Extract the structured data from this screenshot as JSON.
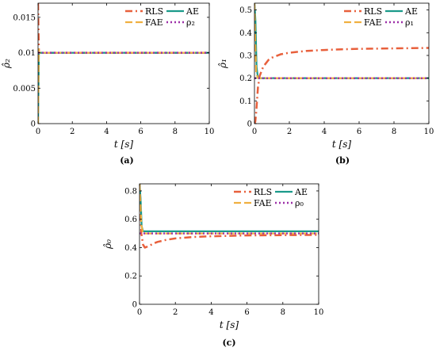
{
  "colors": {
    "RLS": "#e8603c",
    "AE": "#1a9a8a",
    "FAE": "#f0b040",
    "rho": "#9c2fa8"
  },
  "chart_data": [
    {
      "type": "line",
      "caption": "(a)",
      "xlabel": "t [s]",
      "ylabel": "ρ̂₂",
      "xlim": [
        0,
        10
      ],
      "ylim": [
        0,
        0.017
      ],
      "xticks": [
        0,
        2,
        4,
        6,
        8,
        10
      ],
      "yticks": [
        0,
        0.005,
        0.01,
        0.015
      ],
      "ytick_labels": [
        "0",
        "0.005",
        "0.01",
        "0.015"
      ],
      "legend": {
        "placement": "top-right",
        "entries": [
          "RLS",
          "AE",
          "FAE",
          "ρ₂"
        ]
      },
      "series": [
        {
          "name": "RLS",
          "style": "dashdot",
          "x": [
            0,
            0.02,
            0.05,
            0.1,
            0.5,
            1,
            2,
            4,
            6,
            8,
            10
          ],
          "y": [
            0.017,
            0.014,
            0.01,
            0.01,
            0.01,
            0.01,
            0.01,
            0.01,
            0.01,
            0.01,
            0.01
          ]
        },
        {
          "name": "AE",
          "style": "solid",
          "x": [
            0,
            0.05,
            0.1,
            1,
            10
          ],
          "y": [
            0,
            0.01,
            0.01,
            0.01,
            0.01
          ]
        },
        {
          "name": "FAE",
          "style": "dashed",
          "x": [
            0,
            0.04,
            0.08,
            1,
            10
          ],
          "y": [
            0,
            0.0105,
            0.01,
            0.01,
            0.01
          ]
        },
        {
          "name": "ρ₂",
          "style": "dotted",
          "x": [
            0,
            10
          ],
          "y": [
            0.01,
            0.01
          ]
        }
      ]
    },
    {
      "type": "line",
      "caption": "(b)",
      "xlabel": "t [s]",
      "ylabel": "ρ̂₁",
      "xlim": [
        0,
        10
      ],
      "ylim": [
        0,
        0.53
      ],
      "xticks": [
        0,
        2,
        4,
        6,
        8,
        10
      ],
      "yticks": [
        0,
        0.1,
        0.2,
        0.3,
        0.4,
        0.5
      ],
      "ytick_labels": [
        "0",
        "0.1",
        "0.2",
        "0.3",
        "0.4",
        "0.5"
      ],
      "legend": {
        "placement": "top-right",
        "entries": [
          "RLS",
          "AE",
          "FAE",
          "ρ₁"
        ]
      },
      "series": [
        {
          "name": "RLS",
          "style": "dashdot",
          "x": [
            0,
            0.05,
            0.1,
            0.2,
            0.3,
            0.5,
            0.8,
            1,
            1.5,
            2,
            3,
            4,
            5,
            6,
            7,
            8,
            9,
            10
          ],
          "y": [
            0,
            0.01,
            0.05,
            0.16,
            0.21,
            0.25,
            0.28,
            0.29,
            0.305,
            0.312,
            0.32,
            0.324,
            0.327,
            0.329,
            0.33,
            0.331,
            0.332,
            0.333
          ]
        },
        {
          "name": "AE",
          "style": "solid",
          "x": [
            0,
            0.06,
            0.12,
            0.2,
            1,
            10
          ],
          "y": [
            0.53,
            0.45,
            0.25,
            0.2,
            0.2,
            0.2
          ]
        },
        {
          "name": "FAE",
          "style": "dashed",
          "x": [
            0,
            0.05,
            0.1,
            0.2,
            1,
            10
          ],
          "y": [
            0.53,
            0.35,
            0.22,
            0.2,
            0.2,
            0.2
          ]
        },
        {
          "name": "ρ₁",
          "style": "dotted",
          "x": [
            0,
            10
          ],
          "y": [
            0.2,
            0.2
          ]
        }
      ]
    },
    {
      "type": "line",
      "caption": "(c)",
      "xlabel": "t [s]",
      "ylabel": "ρ̂₀",
      "xlim": [
        0,
        10
      ],
      "ylim": [
        0,
        0.85
      ],
      "xticks": [
        0,
        2,
        4,
        6,
        8,
        10
      ],
      "yticks": [
        0,
        0.2,
        0.4,
        0.6,
        0.8
      ],
      "ytick_labels": [
        "0",
        "0.2",
        "0.4",
        "0.6",
        "0.8"
      ],
      "legend": {
        "placement": "top-right",
        "entries": [
          "RLS",
          "AE",
          "FAE",
          "ρ₀"
        ]
      },
      "series": [
        {
          "name": "RLS",
          "style": "dashdot",
          "x": [
            0,
            0.05,
            0.1,
            0.2,
            0.3,
            0.5,
            0.8,
            1,
            1.5,
            2,
            3,
            4,
            5,
            6,
            8,
            10
          ],
          "y": [
            0.85,
            0.7,
            0.5,
            0.42,
            0.4,
            0.41,
            0.43,
            0.44,
            0.455,
            0.465,
            0.475,
            0.48,
            0.483,
            0.486,
            0.488,
            0.49
          ]
        },
        {
          "name": "AE",
          "style": "solid",
          "x": [
            0,
            0.06,
            0.12,
            0.2,
            1,
            10
          ],
          "y": [
            0.85,
            0.75,
            0.55,
            0.515,
            0.515,
            0.515
          ]
        },
        {
          "name": "FAE",
          "style": "dashed",
          "x": [
            0,
            0.05,
            0.1,
            0.2,
            1,
            10
          ],
          "y": [
            0.85,
            0.72,
            0.56,
            0.5,
            0.5,
            0.5
          ]
        },
        {
          "name": "ρ₀",
          "style": "dotted",
          "x": [
            0,
            10
          ],
          "y": [
            0.5,
            0.5
          ]
        }
      ]
    }
  ]
}
